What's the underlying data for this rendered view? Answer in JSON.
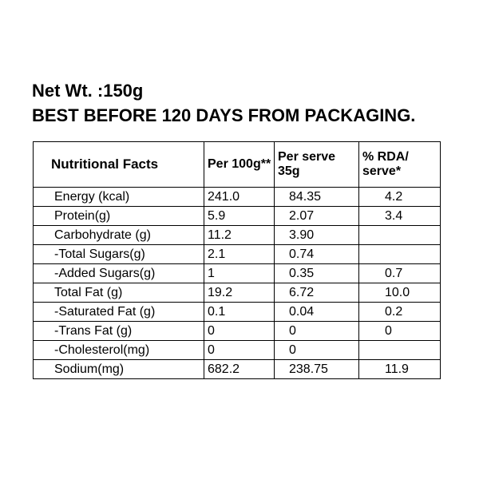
{
  "header": {
    "net_weight": "Net Wt. :150g",
    "best_before": "BEST BEFORE 120 DAYS FROM PACKAGING."
  },
  "table": {
    "columns": [
      "Nutritional Facts",
      "Per 100g**",
      "Per serve 35g",
      "% RDA/ serve*"
    ],
    "rows": [
      [
        "Energy (kcal)",
        "241.0",
        "84.35",
        "4.2"
      ],
      [
        "Protein(g)",
        "5.9",
        "2.07",
        "3.4"
      ],
      [
        "Carbohydrate (g)",
        "11.2",
        "3.90",
        ""
      ],
      [
        "-Total Sugars(g)",
        "2.1",
        "0.74",
        ""
      ],
      [
        "-Added Sugars(g)",
        "1",
        "0.35",
        "0.7"
      ],
      [
        "Total  Fat (g)",
        "19.2",
        "6.72",
        "10.0"
      ],
      [
        "-Saturated  Fat (g)",
        "0.1",
        "0.04",
        "0.2"
      ],
      [
        "-Trans  Fat (g)",
        "0",
        "0",
        "0"
      ],
      [
        "-Cholesterol(mg)",
        "0",
        "0",
        ""
      ],
      [
        "Sodium(mg)",
        "682.2",
        "238.75",
        "11.9"
      ]
    ]
  }
}
